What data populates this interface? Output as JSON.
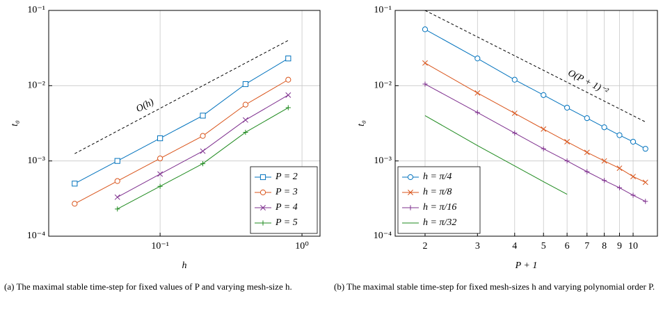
{
  "chart_data": [
    {
      "type": "line",
      "xscale": "log",
      "yscale": "log",
      "grid": true,
      "legend": "lower right",
      "xlabel": "h",
      "ylabel": "t₀",
      "xlim": [
        0.0164,
        1.34
      ],
      "ylim": [
        0.0001,
        0.1
      ],
      "xticks": [
        {
          "value": 0.1,
          "label": "10⁻¹"
        },
        {
          "value": 1,
          "label": "10⁰"
        }
      ],
      "yticks": [
        {
          "value": 0.0001,
          "label": "10⁻⁴"
        },
        {
          "value": 0.001,
          "label": "10⁻³"
        },
        {
          "value": 0.01,
          "label": "10⁻²"
        },
        {
          "value": 0.1,
          "label": "10⁻¹"
        }
      ],
      "x": [
        0.025,
        0.05,
        0.1,
        0.2,
        0.4,
        0.8
      ],
      "series": [
        {
          "name": "P = 2",
          "color": "#0072bd",
          "marker": "square",
          "values": [
            0.0005,
            0.001,
            0.002,
            0.004,
            0.0105,
            0.023
          ]
        },
        {
          "name": "P = 3",
          "color": "#d95319",
          "marker": "circle",
          "values": [
            0.00027,
            0.00054,
            0.00108,
            0.00215,
            0.0056,
            0.012
          ]
        },
        {
          "name": "P = 4",
          "color": "#7e2f8e",
          "marker": "x",
          "values": [
            null,
            0.00033,
            0.00067,
            0.00135,
            0.0035,
            0.0075
          ]
        },
        {
          "name": "P = 5",
          "color": "#1e8a1e",
          "marker": "plus",
          "values": [
            null,
            0.00023,
            0.00046,
            0.00092,
            0.0024,
            0.0051
          ]
        }
      ],
      "reference": {
        "label": "O(h)",
        "x": [
          0.025,
          0.8
        ],
        "values": [
          0.00125,
          0.04
        ]
      },
      "caption": "(a) The maximal stable time-step for fixed values of P and varying mesh-size h."
    },
    {
      "type": "line",
      "xscale": "log",
      "yscale": "log",
      "grid": true,
      "legend": "lower left",
      "xlabel": "P + 1",
      "ylabel": "t₀",
      "xlim": [
        1.587,
        12.07
      ],
      "ylim": [
        0.0001,
        0.1
      ],
      "xticks": [
        2,
        3,
        4,
        5,
        6,
        7,
        8,
        9,
        10
      ],
      "yticks": [
        {
          "value": 0.0001,
          "label": "10⁻⁴"
        },
        {
          "value": 0.001,
          "label": "10⁻³"
        },
        {
          "value": 0.01,
          "label": "10⁻²"
        },
        {
          "value": 0.1,
          "label": "10⁻¹"
        }
      ],
      "x": [
        2,
        3,
        4,
        5,
        6,
        7,
        8,
        9,
        10,
        11
      ],
      "series": [
        {
          "name": "h = π/4",
          "color": "#0072bd",
          "marker": "circle",
          "values": [
            0.056,
            0.023,
            0.012,
            0.0075,
            0.0051,
            0.0037,
            0.0028,
            0.0022,
            0.0018,
            0.00145
          ]
        },
        {
          "name": "h = π/8",
          "color": "#d95319",
          "marker": "x",
          "values": [
            0.02,
            0.008,
            0.0043,
            0.00265,
            0.0018,
            0.0013,
            0.001,
            0.0008,
            0.00062,
            0.00052
          ]
        },
        {
          "name": "h = π/16",
          "color": "#7e2f8e",
          "marker": "plus",
          "values": [
            0.0105,
            0.0044,
            0.00235,
            0.00145,
            0.001,
            0.00072,
            0.00055,
            0.00044,
            0.00035,
            0.00029
          ]
        },
        {
          "name": "h = π/32",
          "color": "#1e8a1e",
          "marker": "none",
          "values": [
            0.004,
            0.0016,
            0.00086,
            0.00053,
            0.00036,
            null,
            null,
            null,
            null,
            null
          ]
        }
      ],
      "reference": {
        "label": "O(P + 1)⁻²",
        "x": [
          2,
          11
        ],
        "values": [
          0.1,
          0.0033
        ]
      },
      "caption": "(b) The maximal stable time-step for fixed mesh-sizes h and varying polynomial order P."
    }
  ]
}
